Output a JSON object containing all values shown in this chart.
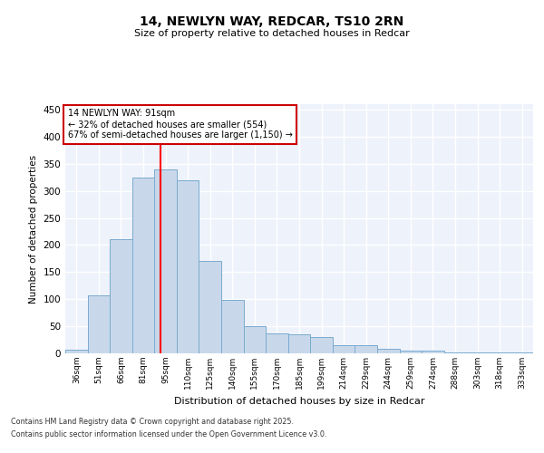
{
  "title_line1": "14, NEWLYN WAY, REDCAR, TS10 2RN",
  "title_line2": "Size of property relative to detached houses in Redcar",
  "xlabel": "Distribution of detached houses by size in Redcar",
  "ylabel": "Number of detached properties",
  "categories": [
    "36sqm",
    "51sqm",
    "66sqm",
    "81sqm",
    "95sqm",
    "110sqm",
    "125sqm",
    "140sqm",
    "155sqm",
    "170sqm",
    "185sqm",
    "199sqm",
    "214sqm",
    "229sqm",
    "244sqm",
    "259sqm",
    "274sqm",
    "288sqm",
    "303sqm",
    "318sqm",
    "333sqm"
  ],
  "values": [
    6,
    107,
    211,
    325,
    340,
    320,
    170,
    98,
    50,
    36,
    35,
    30,
    15,
    15,
    9,
    5,
    5,
    2,
    1,
    1,
    1
  ],
  "bar_color": "#c8d8ea",
  "bar_edge_color": "#7aabcf",
  "background_color": "#eef2fb",
  "grid_color": "#ffffff",
  "red_line_x": 3.77,
  "annotation_text": "14 NEWLYN WAY: 91sqm\n← 32% of detached houses are smaller (554)\n67% of semi-detached houses are larger (1,150) →",
  "annotation_box_color": "#ffffff",
  "annotation_box_edge_color": "#cc0000",
  "ylim": [
    0,
    460
  ],
  "yticks": [
    0,
    50,
    100,
    150,
    200,
    250,
    300,
    350,
    400,
    450
  ],
  "footer_line1": "Contains HM Land Registry data © Crown copyright and database right 2025.",
  "footer_line2": "Contains public sector information licensed under the Open Government Licence v3.0."
}
